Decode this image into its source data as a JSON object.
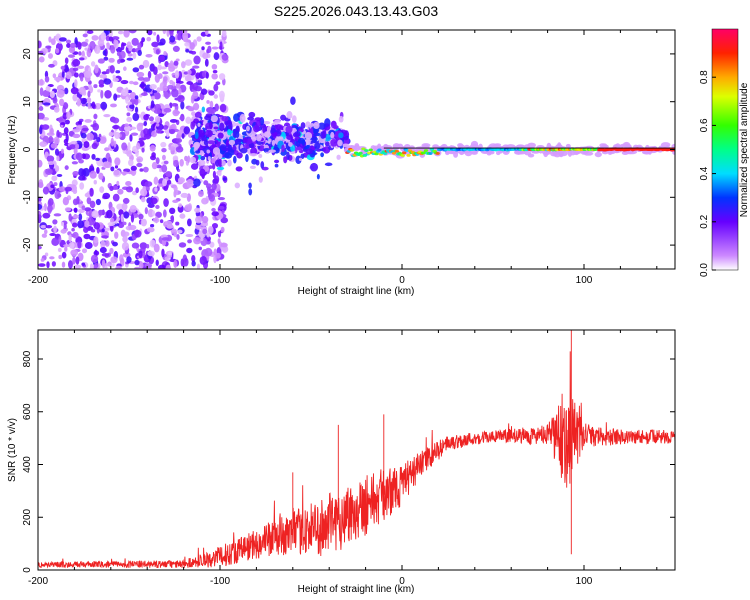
{
  "title": "S225.2026.043.13.43.G03",
  "top_panel": {
    "xlabel": "Height of straight line (km)",
    "ylabel": "Frequency (Hz)",
    "colorbar_label": "Normalized spectral amplitude"
  },
  "bottom_panel": {
    "xlabel": "Height of straight line (km)",
    "ylabel": "SNR (10 * v/v)"
  },
  "chart_data": [
    {
      "type": "heatmap",
      "title": "S225.2026.043.13.43.G03",
      "xlabel": "Height of straight line (km)",
      "ylabel": "Frequency (Hz)",
      "xlim": [
        -200,
        150
      ],
      "ylim": [
        -25,
        25
      ],
      "x_ticks": [
        -200,
        -100,
        0,
        100
      ],
      "x_tick_labels": [
        "-200",
        "-100",
        "0",
        "100"
      ],
      "y_ticks": [
        -20,
        -10,
        0,
        10,
        20
      ],
      "y_tick_labels": [
        "-20",
        "-10",
        "0",
        "10",
        "20"
      ],
      "colorbar": {
        "label": "Normalized spectral amplitude",
        "range": [
          0,
          1
        ],
        "ticks": [
          0.0,
          0.2,
          0.4,
          0.6,
          0.8
        ],
        "tick_labels": [
          "0.0",
          "0.2",
          "0.4",
          "0.6",
          "0.8"
        ]
      },
      "description_segments": [
        {
          "x_range": [
            -200,
            -115
          ],
          "freq_spread": 25,
          "amplitude": 0.1
        },
        {
          "x_range": [
            -115,
            -30
          ],
          "freq_center": 2,
          "freq_spread": 8,
          "amplitude": 0.2
        },
        {
          "x_range": [
            -30,
            150
          ],
          "freq_center": 0,
          "freq_spread": 1,
          "amplitude": 0.9
        }
      ]
    },
    {
      "type": "line",
      "xlabel": "Height of straight line (km)",
      "ylabel": "SNR (10 * v/v)",
      "xlim": [
        -200,
        150
      ],
      "ylim": [
        0,
        910
      ],
      "x_ticks": [
        -200,
        -100,
        0,
        100
      ],
      "x_tick_labels": [
        "-200",
        "-100",
        "0",
        "100"
      ],
      "y_ticks": [
        0,
        200,
        400,
        600,
        800
      ],
      "y_tick_labels": [
        "0",
        "200",
        "400",
        "600",
        "800"
      ],
      "color": "#ee2222",
      "envelope": {
        "x": [
          -200,
          -120,
          -100,
          -80,
          -60,
          -40,
          -20,
          0,
          10,
          25,
          40,
          60,
          80,
          90,
          95,
          100,
          120,
          150
        ],
        "baseline": [
          20,
          22,
          50,
          100,
          140,
          170,
          250,
          320,
          400,
          480,
          500,
          510,
          510,
          500,
          500,
          505,
          505,
          505
        ],
        "noise": [
          10,
          15,
          40,
          60,
          80,
          120,
          120,
          80,
          50,
          30,
          25,
          25,
          40,
          200,
          150,
          40,
          30,
          25
        ]
      },
      "peaks": [
        {
          "x": -60,
          "y": 370
        },
        {
          "x": -35,
          "y": 550
        },
        {
          "x": -10,
          "y": 590
        },
        {
          "x": 93,
          "y": 910
        },
        {
          "x": 93,
          "y": 60
        }
      ]
    }
  ]
}
